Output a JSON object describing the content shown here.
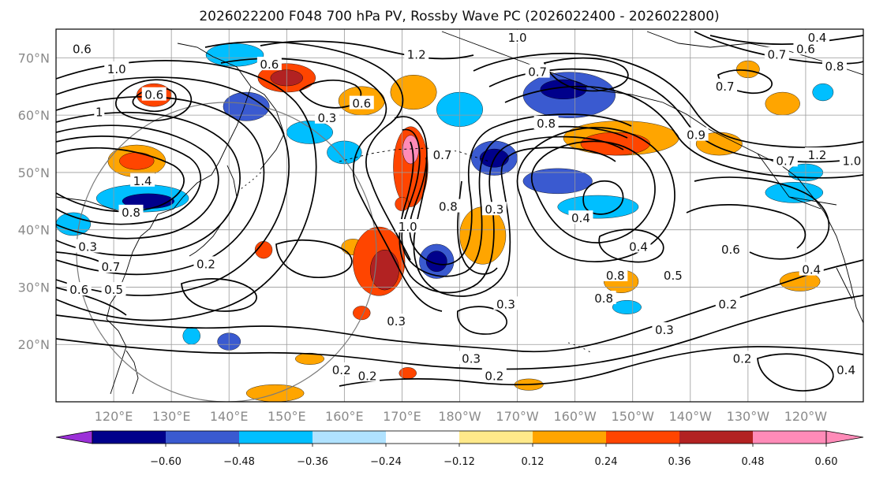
{
  "chart_data": {
    "type": "heatmap",
    "title": "2026022200 F048 700 hPa PV, Rossby Wave PC (2026022400 - 2026022800)",
    "lat_ticks": [
      "20°N",
      "30°N",
      "40°N",
      "50°N",
      "60°N",
      "70°N"
    ],
    "lat_values": [
      20,
      30,
      40,
      50,
      60,
      70
    ],
    "lon_ticks": [
      "120°E",
      "130°E",
      "140°E",
      "150°E",
      "160°E",
      "170°E",
      "180°W",
      "170°W",
      "160°W",
      "150°W",
      "140°W",
      "130°W",
      "120°W"
    ],
    "lon_extent": [
      110,
      250
    ],
    "lat_extent": [
      10,
      75
    ],
    "colorbar": {
      "ticks": [
        "−0.60",
        "−0.48",
        "−0.36",
        "−0.24",
        "−0.12",
        "0.12",
        "0.24",
        "0.36",
        "0.48",
        "0.60"
      ],
      "tick_values": [
        -0.6,
        -0.48,
        -0.36,
        -0.24,
        -0.12,
        0.12,
        0.24,
        0.36,
        0.48,
        0.6
      ],
      "colors": [
        "#9b30d8",
        "#00008b",
        "#3a5ad0",
        "#00bfff",
        "#b0e2ff",
        "#ffffff",
        "#ffe98a",
        "#ffa500",
        "#ff4500",
        "#b22222",
        "#ff8bb8"
      ],
      "extend": "both"
    },
    "contour_labels": [
      {
        "text": "0.6",
        "lon": 114.5,
        "lat": 71.5
      },
      {
        "text": "1.0",
        "lon": 120.5,
        "lat": 68
      },
      {
        "text": "1.4",
        "lon": 125,
        "lat": 48.5
      },
      {
        "text": "0.6",
        "lon": 127,
        "lat": 63.5
      },
      {
        "text": "1",
        "lon": 117.5,
        "lat": 60.5
      },
      {
        "text": "0.8",
        "lon": 123,
        "lat": 43
      },
      {
        "text": "0.6",
        "lon": 147,
        "lat": 68.8
      },
      {
        "text": "0.6",
        "lon": 163,
        "lat": 62
      },
      {
        "text": "0.3",
        "lon": 157,
        "lat": 59.5
      },
      {
        "text": "1.0",
        "lon": 190,
        "lat": 73.5
      },
      {
        "text": "1.2",
        "lon": 172.5,
        "lat": 70.5
      },
      {
        "text": "0.7",
        "lon": 193.5,
        "lat": 67.5
      },
      {
        "text": "0.8",
        "lon": 195,
        "lat": 58.5
      },
      {
        "text": "0.7",
        "lon": 177,
        "lat": 53
      },
      {
        "text": "0.8",
        "lon": 178,
        "lat": 44
      },
      {
        "text": "1.0",
        "lon": 171,
        "lat": 40.5
      },
      {
        "text": "0.3",
        "lon": 186,
        "lat": 43.5
      },
      {
        "text": "0.4",
        "lon": 201,
        "lat": 42
      },
      {
        "text": "0.8",
        "lon": 205,
        "lat": 28
      },
      {
        "text": "0.4",
        "lon": 211,
        "lat": 37
      },
      {
        "text": "0.8",
        "lon": 207,
        "lat": 32
      },
      {
        "text": "0.5",
        "lon": 217,
        "lat": 32
      },
      {
        "text": "0.6",
        "lon": 227,
        "lat": 36.5
      },
      {
        "text": "0.4",
        "lon": 241,
        "lat": 33
      },
      {
        "text": "0.3",
        "lon": 188,
        "lat": 27
      },
      {
        "text": "0.3",
        "lon": 169,
        "lat": 24
      },
      {
        "text": "0.3",
        "lon": 182,
        "lat": 17.5
      },
      {
        "text": "0.2",
        "lon": 186,
        "lat": 14.5
      },
      {
        "text": "0.2",
        "lon": 164,
        "lat": 14.5
      },
      {
        "text": "0.3",
        "lon": 215.5,
        "lat": 22.5
      },
      {
        "text": "0.2",
        "lon": 226.5,
        "lat": 27
      },
      {
        "text": "0.2",
        "lon": 229,
        "lat": 17.5
      },
      {
        "text": "0.7",
        "lon": 235,
        "lat": 70.5
      },
      {
        "text": "0.6",
        "lon": 240,
        "lat": 71.5
      },
      {
        "text": "0.4",
        "lon": 242,
        "lat": 73.5
      },
      {
        "text": "0.8",
        "lon": 245,
        "lat": 68.5
      },
      {
        "text": "0.7",
        "lon": 226,
        "lat": 65
      },
      {
        "text": "1.2",
        "lon": 242,
        "lat": 53
      },
      {
        "text": "1.0",
        "lon": 248,
        "lat": 52
      },
      {
        "text": "0.7",
        "lon": 236.5,
        "lat": 52
      },
      {
        "text": "0.9",
        "lon": 221,
        "lat": 56.5
      },
      {
        "text": "0.3",
        "lon": 115.5,
        "lat": 37
      },
      {
        "text": "0.7",
        "lon": 119.5,
        "lat": 33.5
      },
      {
        "text": "0.6",
        "lon": 114,
        "lat": 29.5
      },
      {
        "text": "0.5",
        "lon": 120,
        "lat": 29.5
      },
      {
        "text": "0.2",
        "lon": 136,
        "lat": 34
      },
      {
        "text": "0.2",
        "lon": 159.5,
        "lat": 15.5
      },
      {
        "text": "0.4",
        "lon": 247,
        "lat": 15.5
      }
    ],
    "anomaly_blobs": [
      {
        "lon": 124,
        "lat": 52,
        "rx": 5,
        "ry": 2.8,
        "level": 0.3
      },
      {
        "lon": 124,
        "lat": 52,
        "rx": 3,
        "ry": 1.5,
        "level": 0.4
      },
      {
        "lon": 125,
        "lat": 45.5,
        "rx": 8,
        "ry": 2.4,
        "level": -0.3
      },
      {
        "lon": 126,
        "lat": 45,
        "rx": 4.5,
        "ry": 1.3,
        "level": -0.5
      },
      {
        "lon": 113,
        "lat": 41,
        "rx": 3,
        "ry": 2,
        "level": -0.3
      },
      {
        "lon": 127,
        "lat": 63.5,
        "rx": 3,
        "ry": 2,
        "level": 0.4
      },
      {
        "lon": 141,
        "lat": 70.5,
        "rx": 5,
        "ry": 2,
        "level": -0.3
      },
      {
        "lon": 143,
        "lat": 61.5,
        "rx": 4,
        "ry": 2.5,
        "level": -0.4
      },
      {
        "lon": 150,
        "lat": 66.5,
        "rx": 5,
        "ry": 2.5,
        "level": 0.4
      },
      {
        "lon": 150,
        "lat": 66.5,
        "rx": 2.8,
        "ry": 1.4,
        "level": 0.5
      },
      {
        "lon": 163,
        "lat": 62.5,
        "rx": 4,
        "ry": 2.5,
        "level": 0.3
      },
      {
        "lon": 154,
        "lat": 57,
        "rx": 4,
        "ry": 2,
        "level": -0.3
      },
      {
        "lon": 160,
        "lat": 53.5,
        "rx": 3,
        "ry": 2,
        "level": -0.3
      },
      {
        "lon": 172,
        "lat": 64,
        "rx": 4,
        "ry": 3,
        "level": 0.3
      },
      {
        "lon": 180,
        "lat": 61,
        "rx": 4,
        "ry": 3,
        "level": -0.3
      },
      {
        "lon": 171.5,
        "lat": 51,
        "rx": 3,
        "ry": 7,
        "level": 0.4
      },
      {
        "lon": 171.5,
        "lat": 54,
        "rx": 1.4,
        "ry": 2.5,
        "level": 0.6
      },
      {
        "lon": 166,
        "lat": 34.5,
        "rx": 4.5,
        "ry": 6,
        "level": 0.4
      },
      {
        "lon": 167,
        "lat": 33,
        "rx": 2.5,
        "ry": 3.5,
        "level": 0.5
      },
      {
        "lon": 176,
        "lat": 34.5,
        "rx": 3,
        "ry": 3,
        "level": -0.4
      },
      {
        "lon": 176,
        "lat": 34.5,
        "rx": 1.8,
        "ry": 1.8,
        "level": -0.55
      },
      {
        "lon": 186,
        "lat": 52.5,
        "rx": 4,
        "ry": 3,
        "level": -0.4
      },
      {
        "lon": 186,
        "lat": 52.5,
        "rx": 2.5,
        "ry": 1.6,
        "level": -0.5
      },
      {
        "lon": 184,
        "lat": 39,
        "rx": 4,
        "ry": 5,
        "level": 0.35
      },
      {
        "lon": 199,
        "lat": 63.5,
        "rx": 8,
        "ry": 4,
        "level": -0.4
      },
      {
        "lon": 198,
        "lat": 64.5,
        "rx": 4,
        "ry": 1.7,
        "level": -0.55
      },
      {
        "lon": 208,
        "lat": 56,
        "rx": 10,
        "ry": 3,
        "level": 0.3
      },
      {
        "lon": 207,
        "lat": 55,
        "rx": 6,
        "ry": 2,
        "level": 0.45
      },
      {
        "lon": 197,
        "lat": 48.5,
        "rx": 6,
        "ry": 2.2,
        "level": -0.4
      },
      {
        "lon": 204,
        "lat": 44,
        "rx": 7,
        "ry": 2,
        "level": -0.3
      },
      {
        "lon": 208,
        "lat": 31,
        "rx": 3,
        "ry": 2,
        "level": 0.3
      },
      {
        "lon": 225,
        "lat": 55,
        "rx": 4,
        "ry": 2,
        "level": 0.3
      },
      {
        "lon": 236,
        "lat": 62,
        "rx": 3,
        "ry": 2,
        "level": 0.3
      },
      {
        "lon": 243,
        "lat": 64,
        "rx": 1.8,
        "ry": 1.5,
        "level": -0.3
      },
      {
        "lon": 238,
        "lat": 46.5,
        "rx": 5,
        "ry": 1.8,
        "level": -0.35
      },
      {
        "lon": 240,
        "lat": 50,
        "rx": 3,
        "ry": 1.5,
        "level": -0.3
      },
      {
        "lon": 239,
        "lat": 31,
        "rx": 3.5,
        "ry": 1.7,
        "level": 0.3
      },
      {
        "lon": 209,
        "lat": 26.5,
        "rx": 2.5,
        "ry": 1.2,
        "level": -0.3
      },
      {
        "lon": 140,
        "lat": 20.5,
        "rx": 2,
        "ry": 1.5,
        "level": -0.4
      },
      {
        "lon": 161.5,
        "lat": 37,
        "rx": 2,
        "ry": 1.4,
        "level": 0.3
      },
      {
        "lon": 163,
        "lat": 25.5,
        "rx": 1.5,
        "ry": 1.2,
        "level": 0.4
      },
      {
        "lon": 170,
        "lat": 44.5,
        "rx": 1.2,
        "ry": 1.2,
        "level": 0.4
      },
      {
        "lon": 192,
        "lat": 13,
        "rx": 2.5,
        "ry": 1,
        "level": 0.3
      },
      {
        "lon": 148,
        "lat": 11.5,
        "rx": 5,
        "ry": 1.5,
        "level": 0.3
      },
      {
        "lon": 171,
        "lat": 15,
        "rx": 1.5,
        "ry": 1,
        "level": 0.45
      },
      {
        "lon": 154,
        "lat": 17.5,
        "rx": 2.5,
        "ry": 1,
        "level": 0.3
      },
      {
        "lon": 133.5,
        "lat": 21.5,
        "rx": 1.5,
        "ry": 1.5,
        "level": -0.3
      },
      {
        "lon": 146,
        "lat": 36.5,
        "rx": 1.5,
        "ry": 1.5,
        "level": 0.4
      },
      {
        "lon": 230,
        "lat": 68,
        "rx": 2,
        "ry": 1.5,
        "level": 0.3
      }
    ]
  }
}
